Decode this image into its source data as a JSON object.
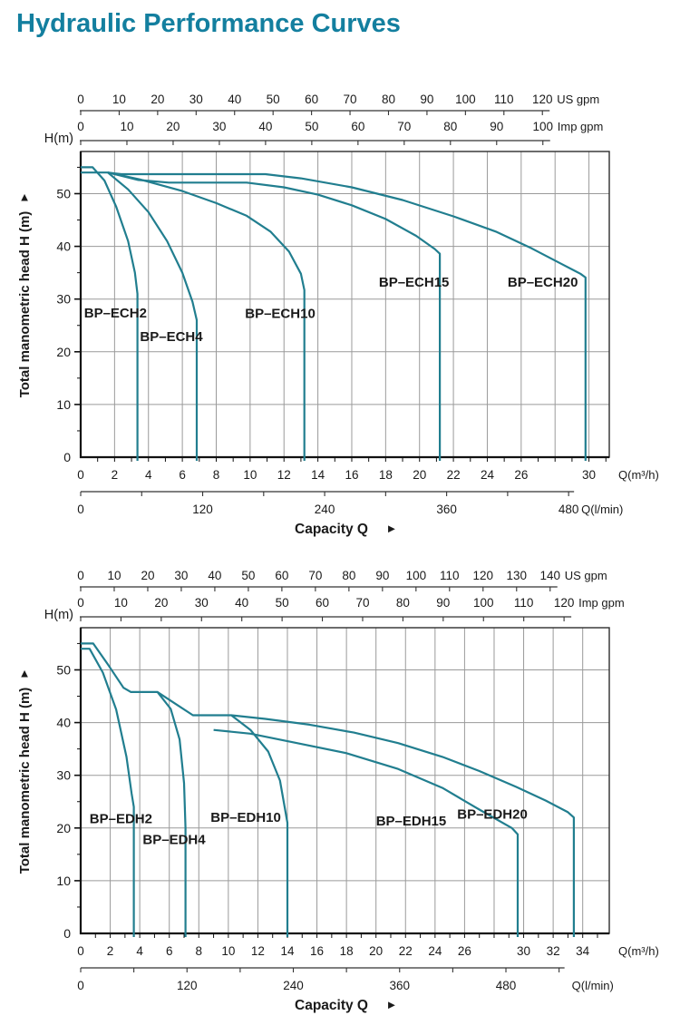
{
  "page_title": "Hydraulic Performance Curves",
  "colors": {
    "title": "#137f9f",
    "curve": "#217e8f",
    "axis_text": "#1a1a1a",
    "axis_line": "#3a3a3a",
    "grid": "#9a9a9a",
    "border": "#2e2e2e"
  },
  "chart_data": [
    {
      "type": "line",
      "title": "BP-ECH series performance",
      "y_axis": {
        "corner_label": "H(m)",
        "axis_label": "Total manometric head H (m)",
        "arrow": "▲",
        "max": 58,
        "tick_step": 10,
        "minor_step": 5,
        "tick_values": [
          0,
          10,
          20,
          30,
          40,
          50
        ]
      },
      "x_axis": {
        "unit": "Q(m³/h)",
        "space_max": 31.2,
        "label_texts": [
          "0",
          "2",
          "4",
          "6",
          "8",
          "10",
          "12",
          "14",
          "16",
          "18",
          "20",
          "22",
          "24",
          "26",
          "30"
        ],
        "label_values": [
          0,
          2,
          4,
          6,
          8,
          10,
          12,
          14,
          16,
          18,
          20,
          22,
          24,
          26,
          30
        ],
        "grid_step": 2,
        "minor_tick_step": 1
      },
      "top_axes": [
        {
          "unit": "US gpm",
          "max": 120,
          "step": 10,
          "m3h_per_unit": 0.2271
        },
        {
          "unit": "Imp gpm",
          "max": 100,
          "step": 10,
          "m3h_per_unit": 0.2728
        }
      ],
      "bottom_axis": {
        "unit": "Q(l/min)",
        "max": 480,
        "step": 60,
        "m3h_per_unit": 0.06
      },
      "capacity_label": "Capacity Q",
      "capacity_arrow": "►",
      "curves": [
        {
          "label": "BP–ECH2",
          "label_xy": [
            0.2,
            27.4
          ],
          "points": [
            [
              0,
              55
            ],
            [
              0.7,
              55
            ],
            [
              1.4,
              52.5
            ],
            [
              2.1,
              47.5
            ],
            [
              2.8,
              41
            ],
            [
              3.2,
              35
            ],
            [
              3.35,
              31
            ],
            [
              3.35,
              0
            ]
          ]
        },
        {
          "label": "BP–ECH4",
          "label_xy": [
            3.5,
            22.9
          ],
          "points": [
            [
              0,
              54
            ],
            [
              1.6,
              54
            ],
            [
              2.8,
              50.8
            ],
            [
              4,
              46.5
            ],
            [
              5.1,
              41
            ],
            [
              6,
              35
            ],
            [
              6.6,
              29.5
            ],
            [
              6.85,
              26
            ],
            [
              6.85,
              0
            ]
          ]
        },
        {
          "label": "BP–ECH10",
          "label_xy": [
            9.7,
            27.3
          ],
          "points": [
            [
              1.6,
              54
            ],
            [
              3.5,
              52.7
            ],
            [
              6,
              50.5
            ],
            [
              8,
              48.2
            ],
            [
              9.8,
              45.8
            ],
            [
              11.2,
              42.8
            ],
            [
              12.3,
              39
            ],
            [
              13,
              34.8
            ],
            [
              13.2,
              31.7
            ],
            [
              13.2,
              0
            ]
          ]
        },
        {
          "label": "BP–ECH15",
          "label_xy": [
            17.6,
            33.2
          ],
          "points": [
            [
              1.6,
              54
            ],
            [
              3.4,
              52.6
            ],
            [
              5.2,
              52.1
            ],
            [
              9.8,
              52.1
            ],
            [
              12,
              51.2
            ],
            [
              14,
              49.8
            ],
            [
              16,
              47.8
            ],
            [
              18,
              45.2
            ],
            [
              19.8,
              42
            ],
            [
              20.9,
              39.5
            ],
            [
              21.2,
              38.6
            ],
            [
              21.2,
              0
            ]
          ]
        },
        {
          "label": "BP–ECH20",
          "label_xy": [
            25.2,
            33.2
          ],
          "points": [
            [
              1.6,
              54
            ],
            [
              2.4,
              53.7
            ],
            [
              10.9,
              53.7
            ],
            [
              13,
              52.9
            ],
            [
              16,
              51.2
            ],
            [
              19,
              48.8
            ],
            [
              22,
              45.7
            ],
            [
              24.5,
              42.8
            ],
            [
              26.5,
              39.8
            ],
            [
              28.3,
              36.8
            ],
            [
              29.5,
              34.8
            ],
            [
              29.8,
              34.1
            ],
            [
              29.8,
              0
            ]
          ]
        }
      ]
    },
    {
      "type": "line",
      "title": "BP-EDH series performance",
      "y_axis": {
        "corner_label": "H(m)",
        "axis_label": "Total manometric head H (m)",
        "arrow": "▲",
        "max": 58,
        "tick_step": 10,
        "minor_step": 5,
        "tick_values": [
          0,
          10,
          20,
          30,
          40,
          50
        ]
      },
      "x_axis": {
        "unit": "Q(m³/h)",
        "space_max": 35.8,
        "label_texts": [
          "0",
          "2",
          "4",
          "6",
          "8",
          "10",
          "12",
          "14",
          "16",
          "18",
          "20",
          "22",
          "24",
          "26",
          "30",
          "32",
          "34"
        ],
        "label_values": [
          0,
          2,
          4,
          6,
          8,
          10,
          12,
          14,
          16,
          18,
          20,
          22,
          24,
          26,
          30,
          32,
          34
        ],
        "grid_step": 2,
        "minor_tick_step": 1
      },
      "top_axes": [
        {
          "unit": "US gpm",
          "max": 140,
          "step": 10,
          "m3h_per_unit": 0.2271
        },
        {
          "unit": "Imp gpm",
          "max": 120,
          "step": 10,
          "m3h_per_unit": 0.2728
        }
      ],
      "bottom_axis": {
        "unit": "Q(l/min)",
        "max": 540,
        "step": 60,
        "m3h_per_unit": 0.06
      },
      "capacity_label": "Capacity Q",
      "capacity_arrow": "►",
      "curves": [
        {
          "label": "BP–EDH2",
          "label_xy": [
            0.6,
            21.8
          ],
          "points": [
            [
              0,
              54
            ],
            [
              0.6,
              54
            ],
            [
              1.5,
              49.5
            ],
            [
              2.4,
              42.5
            ],
            [
              3.1,
              33.5
            ],
            [
              3.45,
              26.5
            ],
            [
              3.6,
              24
            ],
            [
              3.6,
              0
            ]
          ]
        },
        {
          "label": "BP–EDH4",
          "label_xy": [
            4.2,
            17.8
          ],
          "points": [
            [
              0,
              55
            ],
            [
              0.85,
              55
            ],
            [
              1.9,
              50.8
            ],
            [
              2.9,
              46.6
            ],
            [
              3.4,
              45.8
            ],
            [
              5.2,
              45.8
            ],
            [
              6.1,
              42.6
            ],
            [
              6.7,
              36.8
            ],
            [
              7.0,
              28.5
            ],
            [
              7.1,
              20
            ],
            [
              7.1,
              0
            ]
          ]
        },
        {
          "label": "BP–EDH10",
          "label_xy": [
            8.8,
            22.0
          ],
          "points": [
            [
              5.2,
              45.8
            ],
            [
              6.4,
              43.6
            ],
            [
              7.6,
              41.4
            ],
            [
              10.2,
              41.4
            ],
            [
              11.5,
              38.6
            ],
            [
              12.7,
              34.5
            ],
            [
              13.5,
              29
            ],
            [
              14,
              21
            ],
            [
              14,
              0
            ]
          ]
        },
        {
          "label": "BP–EDH15",
          "label_xy": [
            20.0,
            21.3
          ],
          "points": [
            [
              9,
              38.6
            ],
            [
              11.5,
              37.9
            ],
            [
              14.5,
              36.2
            ],
            [
              18,
              34.2
            ],
            [
              21.5,
              31.2
            ],
            [
              24.5,
              27.6
            ],
            [
              27,
              23.5
            ],
            [
              29.2,
              20
            ],
            [
              29.6,
              18.8
            ],
            [
              29.6,
              0
            ]
          ]
        },
        {
          "label": "BP–EDH20",
          "label_xy": [
            25.5,
            22.6
          ],
          "points": [
            [
              10.2,
              41.4
            ],
            [
              12.5,
              40.7
            ],
            [
              15.5,
              39.6
            ],
            [
              18.5,
              38.1
            ],
            [
              21.5,
              36.1
            ],
            [
              24.5,
              33.5
            ],
            [
              27,
              30.8
            ],
            [
              29.5,
              27.8
            ],
            [
              31.5,
              25.2
            ],
            [
              33,
              23
            ],
            [
              33.4,
              22
            ],
            [
              33.4,
              0
            ]
          ]
        }
      ]
    }
  ]
}
